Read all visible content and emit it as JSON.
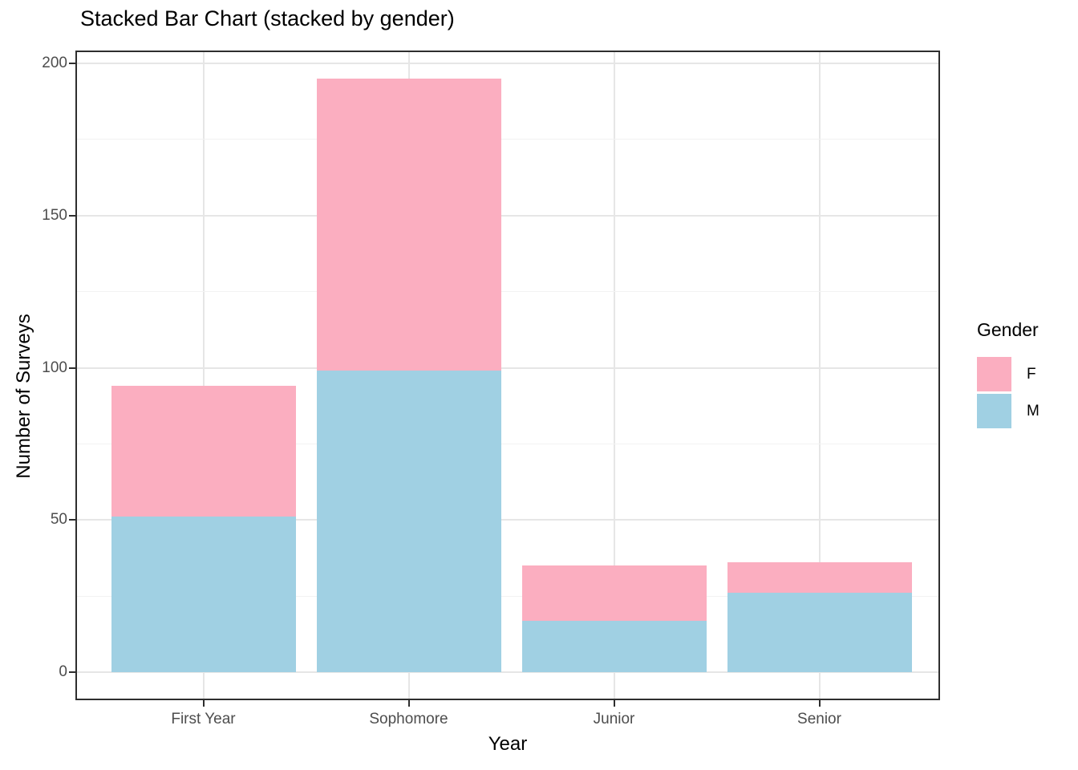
{
  "chart_data": {
    "type": "bar",
    "variant": "stacked",
    "title": "Stacked Bar Chart (stacked by gender)",
    "xlabel": "Year",
    "ylabel": "Number of Surveys",
    "categories": [
      "First Year",
      "Sophomore",
      "Junior",
      "Senior"
    ],
    "series": [
      {
        "name": "F",
        "color": "#FBAEC0",
        "values": [
          43,
          96,
          18,
          10
        ]
      },
      {
        "name": "M",
        "color": "#A0D0E3",
        "values": [
          51,
          99,
          17,
          26
        ]
      }
    ],
    "stack_totals": [
      94,
      195,
      35,
      36
    ],
    "stack_order_bottom_to_top": [
      "M",
      "F"
    ],
    "ylim": [
      0,
      200
    ],
    "y_major_ticks": [
      0,
      50,
      100,
      150,
      200
    ],
    "y_minor_ticks": [
      25,
      75,
      125,
      175
    ],
    "grid": {
      "horizontal_major": true,
      "horizontal_minor": true,
      "vertical_major_at_categories": true
    },
    "legend": {
      "title": "Gender",
      "position": "right",
      "entries": [
        {
          "label": "F",
          "color": "#FBAEC0"
        },
        {
          "label": "M",
          "color": "#A0D0E3"
        }
      ]
    }
  },
  "styles": {
    "background": "#FFFFFF",
    "panel_border_color": "#2e2e2e",
    "grid_major_color": "#E6E6E6",
    "grid_minor_color": "#F2F2F2",
    "tick_mark_color": "#2e2e2e",
    "tick_label_color": "#4D4D4D",
    "text_color": "#000000"
  }
}
